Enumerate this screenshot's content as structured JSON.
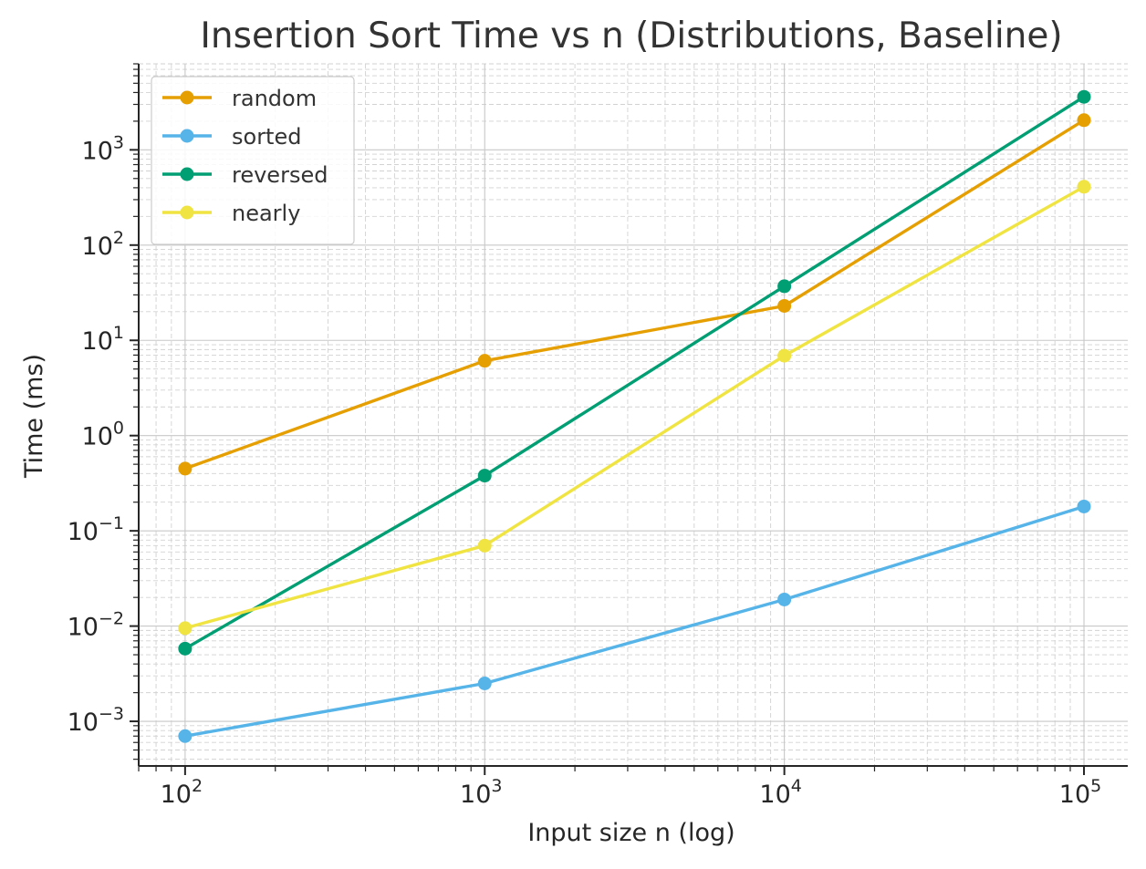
{
  "chart_data": {
    "type": "line",
    "title": "Insertion Sort Time vs n (Distributions, Baseline)",
    "xlabel": "Input size n (log)",
    "ylabel": "Time (ms)",
    "xscale": "log",
    "yscale": "log",
    "xlim": [
      70,
      140000
    ],
    "ylim": [
      0.00034,
      8000
    ],
    "grid": true,
    "legend_position": "top-left",
    "x": [
      100,
      1000,
      10000,
      100000
    ],
    "x_ticks": [
      {
        "value": 100,
        "base": "10",
        "exp": "2"
      },
      {
        "value": 1000,
        "base": "10",
        "exp": "3"
      },
      {
        "value": 10000,
        "base": "10",
        "exp": "4"
      },
      {
        "value": 100000,
        "base": "10",
        "exp": "5"
      }
    ],
    "y_ticks": [
      {
        "value": 0.001,
        "base": "10",
        "exp": "−3"
      },
      {
        "value": 0.01,
        "base": "10",
        "exp": "−2"
      },
      {
        "value": 0.1,
        "base": "10",
        "exp": "−1"
      },
      {
        "value": 1,
        "base": "10",
        "exp": "0"
      },
      {
        "value": 10,
        "base": "10",
        "exp": "1"
      },
      {
        "value": 100,
        "base": "10",
        "exp": "2"
      },
      {
        "value": 1000,
        "base": "10",
        "exp": "3"
      }
    ],
    "series": [
      {
        "name": "random",
        "color": "#E69F00",
        "values": [
          0.45,
          6.1,
          23,
          2050
        ]
      },
      {
        "name": "sorted",
        "color": "#56B4E9",
        "values": [
          0.0007,
          0.0025,
          0.019,
          0.18
        ]
      },
      {
        "name": "reversed",
        "color": "#009E73",
        "values": [
          0.0058,
          0.38,
          37,
          3600
        ]
      },
      {
        "name": "nearly",
        "color": "#F0E442",
        "values": [
          0.0095,
          0.07,
          6.9,
          410
        ]
      }
    ]
  }
}
